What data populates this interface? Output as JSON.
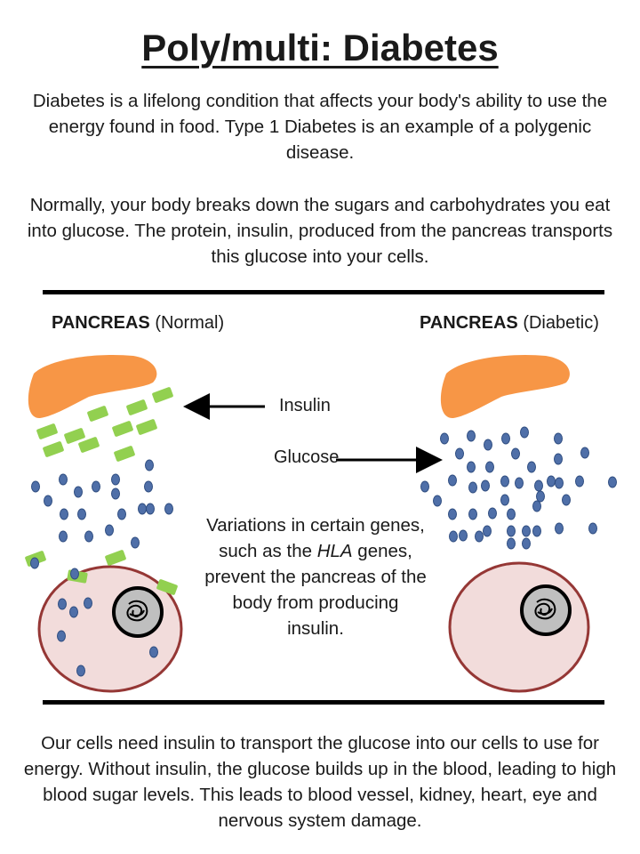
{
  "title": "Poly/multi: Diabetes",
  "intro": "Diabetes is a lifelong condition that affects your body's ability to use the energy found in food. Type 1 Diabetes is an example of a polygenic disease.",
  "intro2": "Normally, your body breaks down the sugars and carbohydrates you eat into glucose. The protein, insulin, produced from the pancreas transports this glucose into your cells.",
  "pancreas_normal": {
    "bold": "PANCREAS",
    "suffix": "(Normal)"
  },
  "pancreas_diabetic": {
    "bold": "PANCREAS",
    "suffix": "(Diabetic)"
  },
  "labels": {
    "insulin": "Insulin",
    "glucose": "Glucose"
  },
  "variations": {
    "part1": "Variations in certain genes, such as the ",
    "italic": "HLA",
    "part2": " genes, prevent the pancreas of the body from producing insulin."
  },
  "outro": "Our cells need insulin to transport the glucose into our cells to use for energy. Without insulin, the glucose builds up in the blood, leading to high blood sugar levels. This leads to blood vessel, kidney, heart, eye and nervous system damage.",
  "colors": {
    "pancreas": "#f79646",
    "insulin": "#92d050",
    "glucose": "#4f6fa8",
    "cell_fill": "#f2dcdb",
    "cell_border": "#953735",
    "nucleus": "#bfbfbf"
  }
}
